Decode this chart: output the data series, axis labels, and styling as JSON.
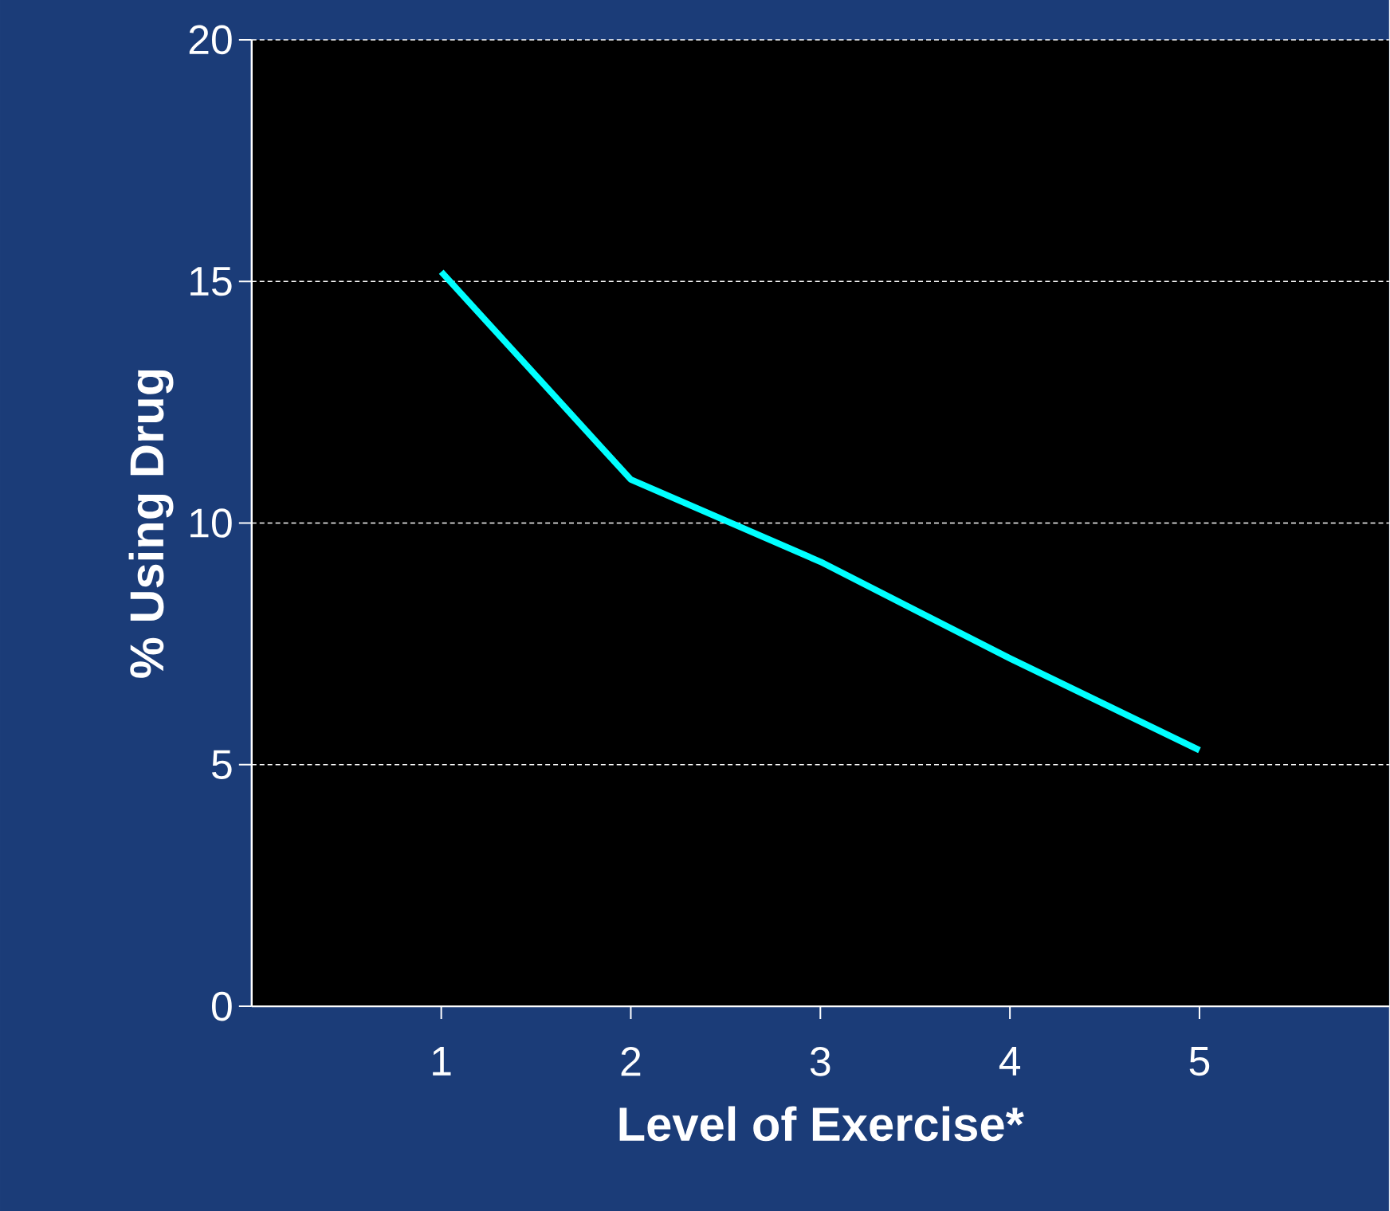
{
  "chart_data": {
    "type": "line",
    "xlabel": "Level of Exercise*",
    "ylabel": "% Using Drug",
    "x": [
      1,
      2,
      3,
      4,
      5
    ],
    "series": [
      {
        "color": "#00ffff",
        "values": [
          15.2,
          10.9,
          9.2,
          7.2,
          5.3
        ]
      }
    ],
    "xlim": [
      0,
      6
    ],
    "xticks": [
      1,
      2,
      3,
      4,
      5
    ],
    "ylim": [
      0,
      20
    ],
    "yticks": [
      0,
      5,
      10,
      15,
      20
    ],
    "grid": "y",
    "line_style": "solid",
    "marker": "none"
  }
}
